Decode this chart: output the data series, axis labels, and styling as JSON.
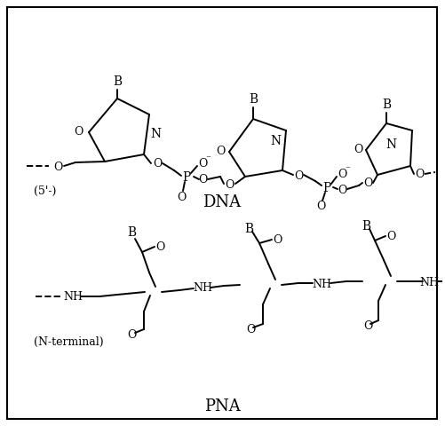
{
  "background_color": "#ffffff",
  "border_color": "#000000",
  "text_color": "#000000",
  "dna_label": "DNA",
  "pna_label": "PNA",
  "five_prime_label": "(5'-)",
  "n_terminal_label": "(N-terminal)",
  "lw": 1.4
}
